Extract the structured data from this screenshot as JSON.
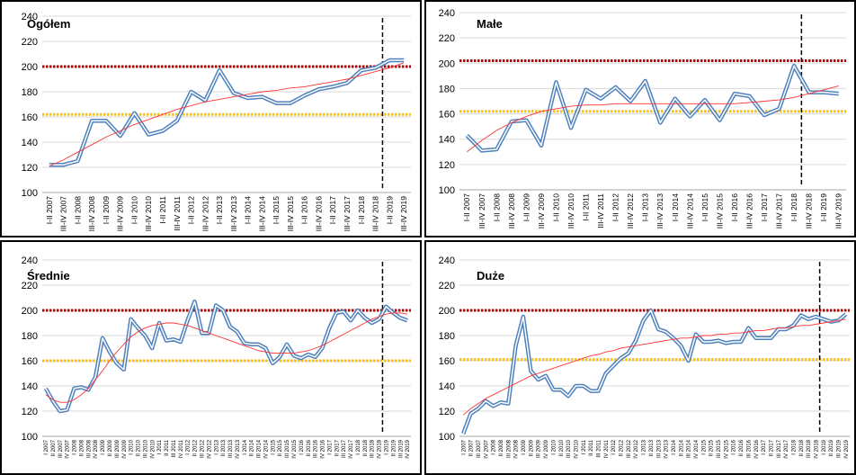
{
  "chart_data": [
    {
      "type": "line",
      "title": "Ogółem",
      "xlabel": "",
      "ylabel": "",
      "ylim": [
        100,
        240
      ],
      "yticks": [
        100,
        120,
        140,
        160,
        180,
        200,
        220,
        240
      ],
      "grid": "horizontal",
      "legend": "none",
      "categories": [
        "I-II 2007",
        "III-IV 2007",
        "I-II 2008",
        "III-IV 2008",
        "I-II 2009",
        "III-IV 2009",
        "I-II 2010",
        "III-IV 2010",
        "I-II 2011",
        "III-IV 2011",
        "I-II 2012",
        "III-IV 2012",
        "I-II 2013",
        "III-IV 2013",
        "I-II 2014",
        "III-IV 2014",
        "I-II 2015",
        "III-IV 2015",
        "I-II 2016",
        "III-IV 2016",
        "I-II 2017",
        "III-IV 2017",
        "I-II 2018",
        "III-IV 2018",
        "I-II 2019",
        "III-IV 2019"
      ],
      "values": [
        122,
        122,
        125,
        157,
        157,
        145,
        163,
        146,
        149,
        157,
        180,
        173,
        197,
        179,
        175,
        176,
        171,
        171,
        177,
        182,
        184,
        187,
        197,
        199,
        205,
        205
      ],
      "trend": [
        121,
        126,
        132,
        138,
        144,
        149,
        154,
        158,
        162,
        166,
        169,
        172,
        174,
        176,
        178,
        180,
        181,
        183,
        184,
        186,
        188,
        190,
        193,
        196,
        199,
        203
      ],
      "upper_line": 200,
      "lower_line": 162,
      "marker_after": "III-IV 2018",
      "colors": {
        "series": "#4f81bd",
        "trend": "#ff3333",
        "upper": "#c00000",
        "lower": "#ffc000",
        "marker": "#000000"
      }
    },
    {
      "type": "line",
      "title": "Małe",
      "xlabel": "",
      "ylabel": "",
      "ylim": [
        100,
        240
      ],
      "yticks": [
        100,
        120,
        140,
        160,
        180,
        200,
        220,
        240
      ],
      "grid": "horizontal",
      "legend": "none",
      "categories": [
        "I-II 2007",
        "III-IV 2007",
        "I-II 2008",
        "III-IV 2008",
        "I-II 2009",
        "III-IV 2009",
        "I-II 2010",
        "III-IV 2010",
        "I-II 2011",
        "III-IV 2011",
        "I-II 2012",
        "III-IV 2012",
        "I-II 2013",
        "III-IV 2013",
        "I-II 2014",
        "III-IV 2014",
        "I-II 2015",
        "III-IV 2015",
        "I-II 2016",
        "III-IV 2016",
        "I-II 2017",
        "III-IV 2017",
        "I-II 2018",
        "III-IV 2018",
        "I-II 2019",
        "III-IV 2019"
      ],
      "values": [
        143,
        131,
        132,
        154,
        155,
        135,
        185,
        149,
        179,
        172,
        181,
        170,
        186,
        153,
        172,
        158,
        171,
        155,
        176,
        174,
        159,
        164,
        198,
        177,
        177,
        176
      ],
      "trend": [
        130,
        139,
        147,
        153,
        158,
        162,
        164,
        166,
        167,
        167,
        168,
        168,
        168,
        168,
        168,
        168,
        168,
        168,
        168,
        169,
        170,
        171,
        173,
        176,
        179,
        182
      ],
      "upper_line": 202,
      "lower_line": 162,
      "marker_after": "I-II 2018",
      "colors": {
        "series": "#4f81bd",
        "trend": "#ff3333",
        "upper": "#c00000",
        "lower": "#ffc000",
        "marker": "#000000"
      }
    },
    {
      "type": "line",
      "title": "Średnie",
      "xlabel": "",
      "ylabel": "",
      "ylim": [
        100,
        240
      ],
      "yticks": [
        100,
        120,
        140,
        160,
        180,
        200,
        220,
        240
      ],
      "grid": "horizontal",
      "legend": "none",
      "categories": [
        "I 2007",
        "II 2007",
        "III 2007",
        "IV 2007",
        "I 2008",
        "II 2008",
        "III 2008",
        "IV 2008",
        "I 2009",
        "II 2009",
        "III 2009",
        "IV 2009",
        "I 2010",
        "II 2010",
        "III 2010",
        "IV 2010",
        "I 2011",
        "II 2011",
        "III 2011",
        "IV 2011",
        "I 2012",
        "II 2012",
        "III 2012",
        "IV 2012",
        "I 2013",
        "II 2013",
        "III 2013",
        "IV 2013",
        "I 2014",
        "II 2014",
        "III 2014",
        "IV 2014",
        "I 2015",
        "II 2015",
        "III 2015",
        "IV 2015",
        "I 2016",
        "II 2016",
        "III 2016",
        "IV 2016",
        "I 2017",
        "II 2017",
        "III 2017",
        "IV 2017",
        "I 2018",
        "II 2018",
        "III 2018",
        "IV 2018",
        "I 2019",
        "II 2019",
        "III 2019",
        "IV 2019"
      ],
      "values": [
        138,
        128,
        120,
        121,
        138,
        139,
        137,
        147,
        178,
        167,
        158,
        153,
        193,
        186,
        180,
        170,
        190,
        176,
        177,
        175,
        192,
        207,
        182,
        182,
        204,
        200,
        187,
        183,
        174,
        173,
        173,
        170,
        158,
        163,
        173,
        164,
        162,
        165,
        163,
        170,
        186,
        198,
        199,
        192,
        200,
        194,
        190,
        193,
        203,
        198,
        194,
        192
      ],
      "trend": [
        133,
        129,
        127,
        127,
        129,
        133,
        138,
        145,
        152,
        160,
        167,
        173,
        179,
        183,
        186,
        188,
        189,
        190,
        190,
        189,
        188,
        186,
        184,
        182,
        180,
        178,
        176,
        174,
        172,
        170,
        168,
        167,
        166,
        166,
        166,
        166,
        167,
        168,
        170,
        172,
        175,
        178,
        181,
        184,
        187,
        190,
        193,
        195,
        197,
        198,
        198,
        197
      ],
      "upper_line": 200,
      "lower_line": 160,
      "marker_after": "IV 2018",
      "colors": {
        "series": "#4f81bd",
        "trend": "#ff3333",
        "upper": "#c00000",
        "lower": "#ffc000",
        "marker": "#000000"
      }
    },
    {
      "type": "line",
      "title": "Duże",
      "xlabel": "",
      "ylabel": "",
      "ylim": [
        100,
        240
      ],
      "yticks": [
        100,
        120,
        140,
        160,
        180,
        200,
        220,
        240
      ],
      "grid": "horizontal",
      "legend": "none",
      "categories": [
        "I 2007",
        "II 2007",
        "III 2007",
        "IV 2007",
        "I 2008",
        "II 2008",
        "III 2008",
        "IV 2008",
        "I 2009",
        "II 2009",
        "III 2009",
        "IV 2009",
        "I 2010",
        "II 2010",
        "III 2010",
        "IV 2010",
        "I 2011",
        "II 2011",
        "III 2011",
        "IV 2011",
        "I 2012",
        "II 2012",
        "III 2012",
        "IV 2012",
        "I 2013",
        "II 2013",
        "III 2013",
        "IV 2013",
        "I 2014",
        "II 2014",
        "III 2014",
        "IV 2014",
        "I 2015",
        "II 2015",
        "III 2015",
        "IV 2015",
        "I 2016",
        "II 2016",
        "III 2016",
        "IV 2016",
        "I 2017",
        "II 2017",
        "III 2017",
        "IV 2017",
        "I 2018",
        "II 2018",
        "III 2018",
        "IV 2018",
        "I 2019",
        "II 2019",
        "III 2019",
        "IV 2019"
      ],
      "values": [
        102,
        118,
        122,
        128,
        124,
        127,
        126,
        172,
        195,
        152,
        145,
        148,
        137,
        137,
        132,
        140,
        140,
        136,
        136,
        150,
        156,
        162,
        166,
        176,
        192,
        200,
        185,
        183,
        178,
        172,
        160,
        181,
        175,
        175,
        176,
        174,
        175,
        175,
        186,
        178,
        178,
        178,
        185,
        185,
        188,
        196,
        193,
        195,
        193,
        191,
        192,
        197
      ],
      "trend": [
        117,
        122,
        126,
        130,
        133,
        136,
        139,
        142,
        145,
        148,
        150,
        152,
        154,
        156,
        158,
        160,
        162,
        164,
        165,
        167,
        168,
        170,
        171,
        172,
        173,
        174,
        175,
        176,
        177,
        178,
        178,
        179,
        180,
        180,
        181,
        181,
        182,
        182,
        183,
        184,
        184,
        185,
        186,
        186,
        187,
        188,
        188,
        189,
        190,
        191,
        192,
        193
      ],
      "upper_line": 200,
      "lower_line": 161,
      "marker_after": "IV 2018",
      "colors": {
        "series": "#4f81bd",
        "trend": "#ff3333",
        "upper": "#c00000",
        "lower": "#ffc000",
        "marker": "#000000"
      }
    }
  ]
}
